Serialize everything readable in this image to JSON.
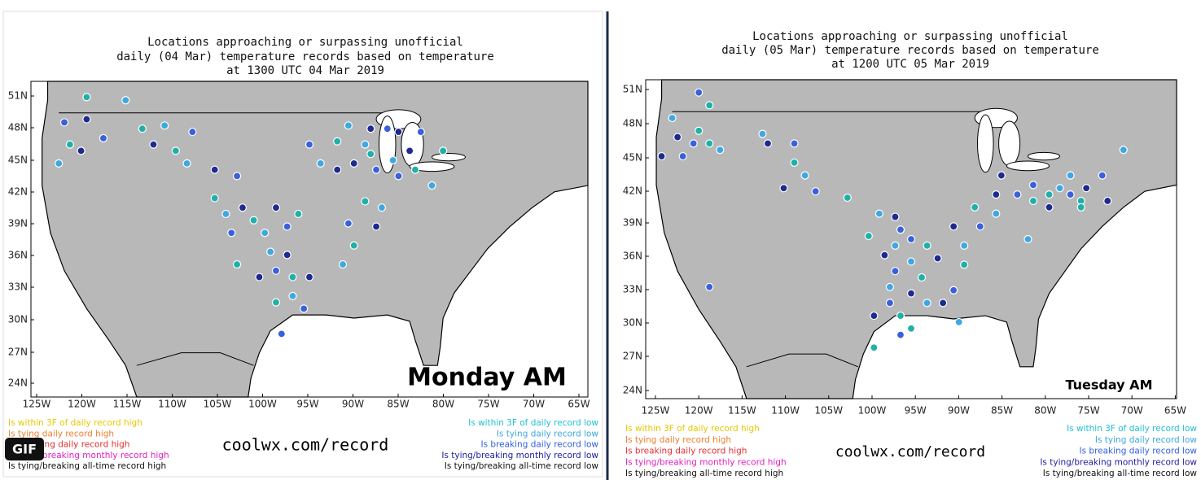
{
  "panels": [
    {
      "title": [
        "Locations approaching or surpassing unofficial",
        "daily (04 Mar) temperature records based on temperature",
        "at 1300 UTC 04 Mar 2019"
      ],
      "lat_labels": [
        "51N",
        "48N",
        "45N",
        "42N",
        "39N",
        "36N",
        "33N",
        "30N",
        "27N",
        "24N"
      ],
      "lon_labels": [
        "125W",
        "120W",
        "115W",
        "110W",
        "105W",
        "100W",
        "95W",
        "90W",
        "85W",
        "80W",
        "75W",
        "70W",
        "65W"
      ],
      "legend_high": [
        "Is within 3F of daily record high",
        "Is tying daily record high",
        "Is breaking daily record high",
        "Is tying/breaking monthly record high",
        "Is tying/breaking all-time record high"
      ],
      "legend_low": [
        "Is within 3F of daily record low",
        "Is tying daily record low",
        "Is breaking daily record low",
        "Is tying/breaking monthly record low",
        "Is tying/breaking all-time record low"
      ],
      "website": "coolwx.com/record",
      "caption": "Monday AM",
      "badge": "GIF"
    },
    {
      "title": [
        "Locations approaching or surpassing unofficial",
        "daily (05 Mar) temperature records based on temperature",
        "at 1200 UTC 05 Mar 2019"
      ],
      "lat_labels": [
        "51N",
        "48N",
        "45N",
        "42N",
        "39N",
        "36N",
        "33N",
        "30N",
        "27N",
        "24N"
      ],
      "lon_labels": [
        "125W",
        "120W",
        "115W",
        "110W",
        "105W",
        "100W",
        "95W",
        "90W",
        "85W",
        "80W",
        "75W",
        "70W",
        "65W"
      ],
      "legend_high": [
        "Is within 3F of daily record high",
        "Is tying daily record high",
        "Is breaking daily record high",
        "Is tying/breaking monthly record high",
        "Is tying/breaking all-time record high"
      ],
      "legend_low": [
        "Is within 3F of daily record low",
        "Is tying daily record low",
        "Is breaking daily record low",
        "Is tying/breaking monthly record low",
        "Is tying/breaking all-time record low"
      ],
      "website": "coolwx.com/record",
      "caption": "Tuesday AM"
    }
  ]
}
